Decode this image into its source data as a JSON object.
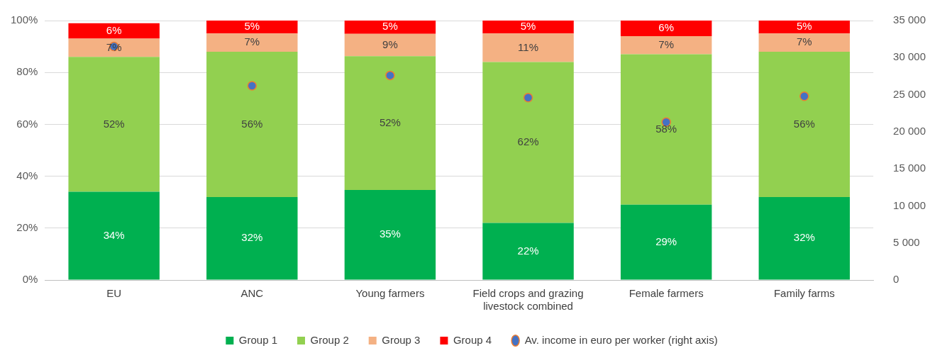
{
  "chart_data": {
    "type": "bar",
    "stacked": true,
    "categories": [
      "EU",
      "ANC",
      "Young farmers",
      "Field crops and grazing livestock combined",
      "Female farmers",
      "Family farms"
    ],
    "series": [
      {
        "name": "Group 1",
        "color": "#00b050",
        "values": [
          34,
          32,
          34.7,
          22,
          29,
          32
        ],
        "value_labels": [
          "34%",
          "32%",
          "35%",
          "22%",
          "29%",
          "32%"
        ]
      },
      {
        "name": "Group 2",
        "color": "#92d050",
        "values": [
          52,
          56,
          51.6,
          62,
          58,
          56
        ],
        "value_labels": [
          "52%",
          "56%",
          "52%",
          "62%",
          "58%",
          "56%"
        ]
      },
      {
        "name": "Group 3",
        "color": "#f4b183",
        "values": [
          7,
          7,
          8.6,
          11,
          7,
          7
        ],
        "value_labels": [
          "7%",
          "7%",
          "9%",
          "11%",
          "7%",
          "7%"
        ]
      },
      {
        "name": "Group 4",
        "color": "#ff0000",
        "values": [
          6,
          5,
          5.1,
          5,
          6,
          5
        ],
        "value_labels": [
          "6%",
          "5%",
          "5%",
          "5%",
          "6%",
          "5%"
        ]
      },
      {
        "name": "Av. income in euro per worker (right axis)",
        "type": "scatter",
        "axis": "y2",
        "color": "#4472c4",
        "values": [
          31500,
          26200,
          27600,
          24600,
          21300,
          24800
        ]
      }
    ],
    "ylim": [
      0,
      100
    ],
    "yticks": [
      {
        "value": 0,
        "label": "0%"
      },
      {
        "value": 20,
        "label": "20%"
      },
      {
        "value": 40,
        "label": "40%"
      },
      {
        "value": 60,
        "label": "60%"
      },
      {
        "value": 80,
        "label": "80%"
      },
      {
        "value": 100,
        "label": "100%"
      }
    ],
    "y2lim": [
      0,
      35000
    ],
    "y2ticks": [
      0,
      {
        "value": 5000,
        "label": "5 000"
      },
      {
        "value": 10000,
        "label": "10 000"
      },
      {
        "value": 15000,
        "label": "15 000"
      },
      {
        "value": 20000,
        "label": "20 000"
      },
      {
        "value": 25000,
        "label": "25 000"
      },
      {
        "value": 30000,
        "label": "30 000"
      },
      {
        "value": 35000,
        "label": "35 000"
      }
    ],
    "grid": "y",
    "legend": "bottom",
    "marker": "circle"
  }
}
